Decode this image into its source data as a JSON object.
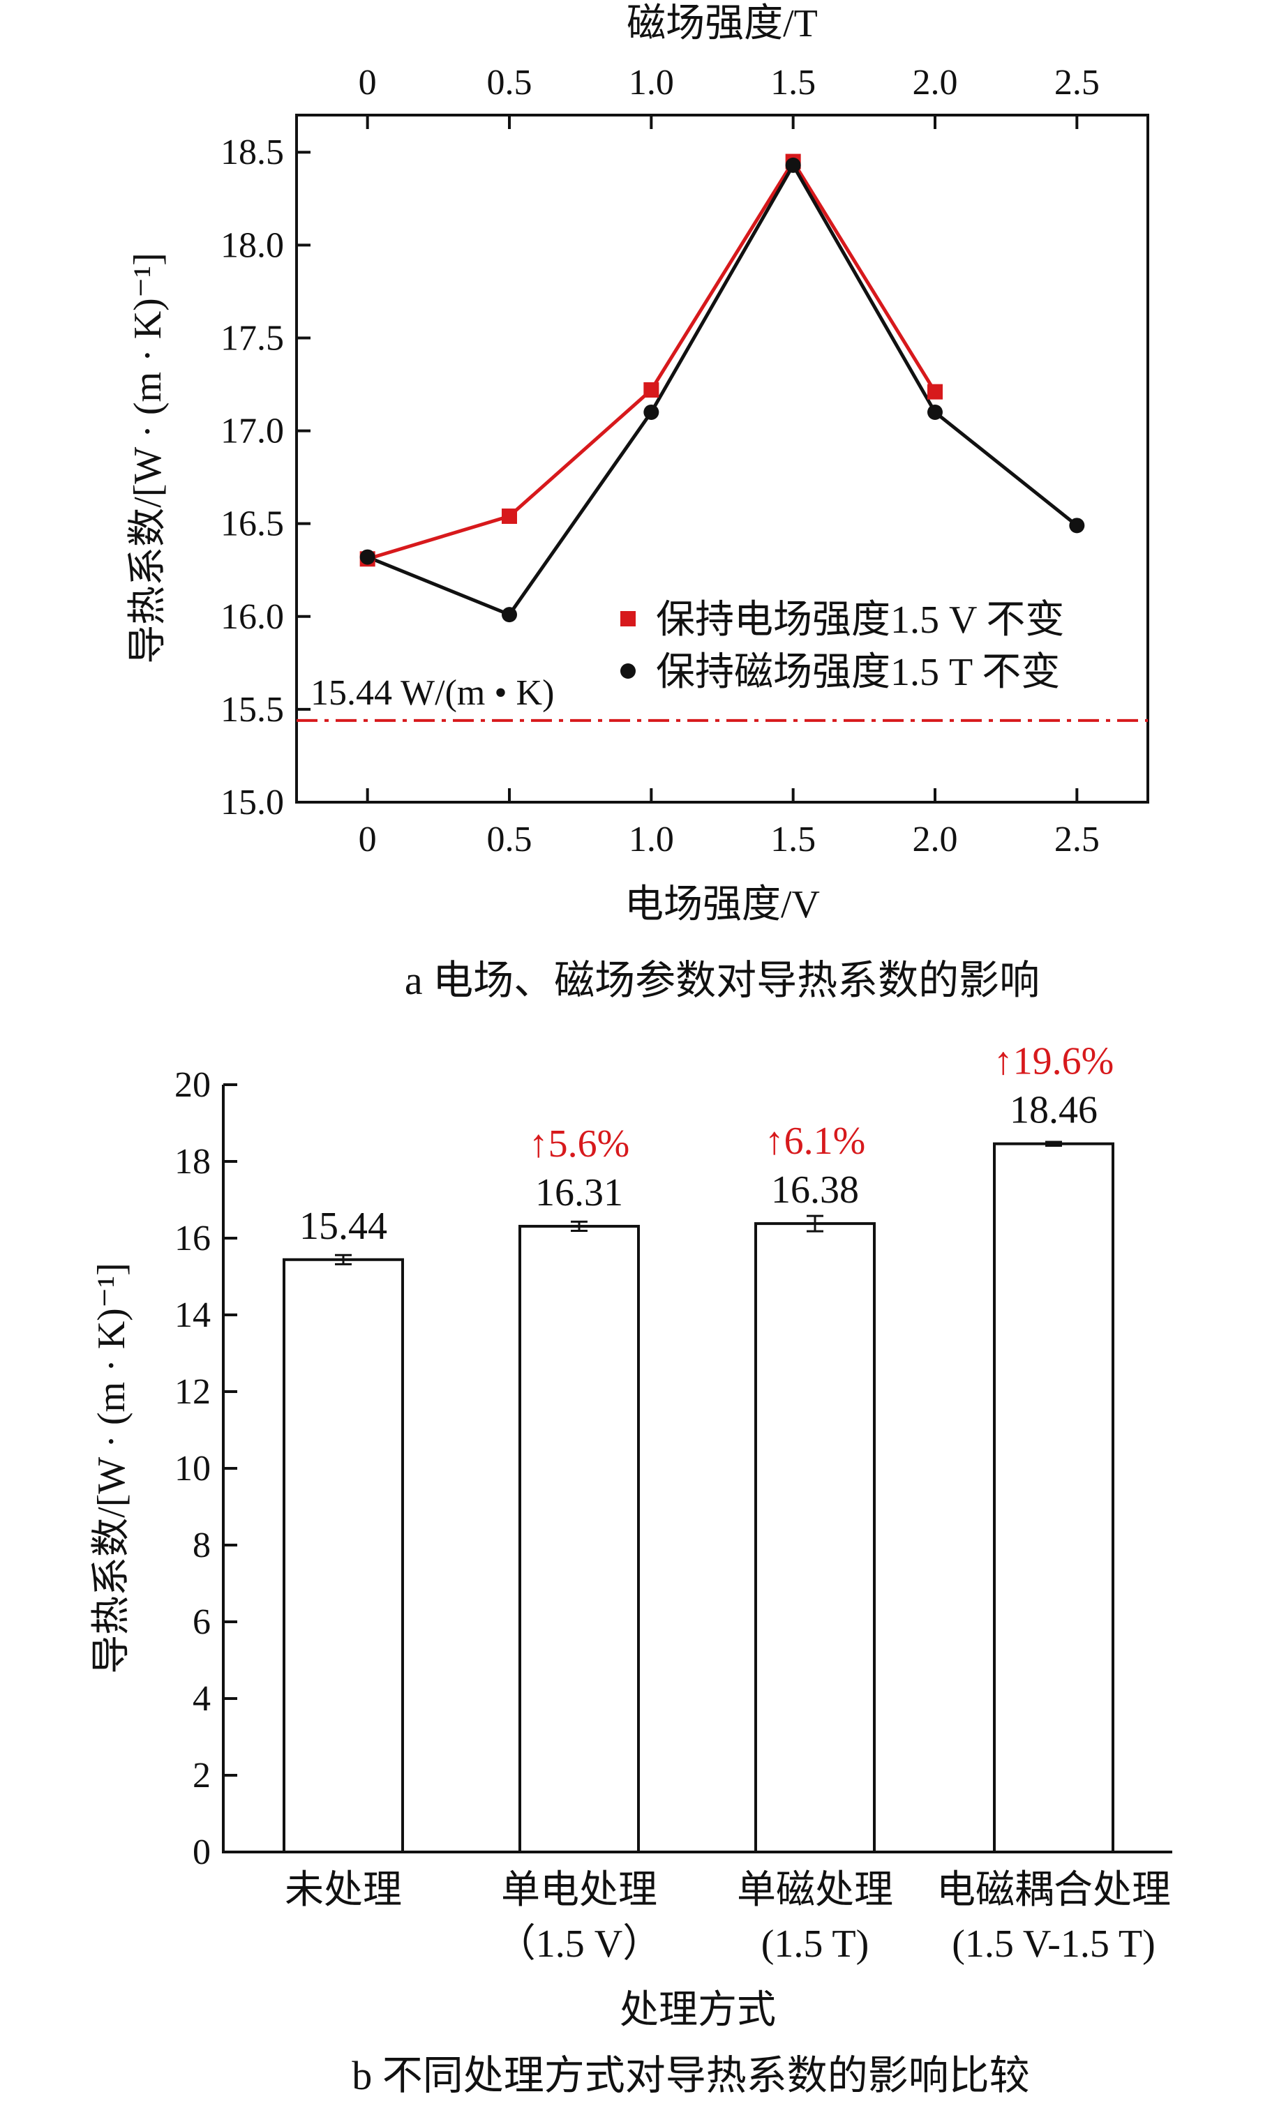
{
  "chart_data": [
    {
      "type": "line",
      "caption": "a  电场、磁场参数对导热系数的影响",
      "xlabel": "电场强度/V",
      "x2label": "磁场强度/T",
      "ylabel": "导热系数/[W · (m · K)⁻¹]",
      "xlim": [
        -0.25,
        2.75
      ],
      "ylim": [
        15.0,
        18.7
      ],
      "xticks": [
        "0",
        "0.5",
        "1.0",
        "1.5",
        "2.0",
        "2.5"
      ],
      "x2ticks": [
        "0",
        "0.5",
        "1.0",
        "1.5",
        "2.0",
        "2.5"
      ],
      "yticks": [
        "15.0",
        "15.5",
        "16.0",
        "16.5",
        "17.0",
        "17.5",
        "18.0",
        "18.5"
      ],
      "series": [
        {
          "name": "保持电场强度1.5 V 不变",
          "color": "#d7191c",
          "marker": "square",
          "x": [
            0,
            0.5,
            1.0,
            1.5,
            2.0
          ],
          "y": [
            16.31,
            16.54,
            17.22,
            18.45,
            17.21
          ]
        },
        {
          "name": "保持磁场强度1.5 T 不变",
          "color": "#111111",
          "marker": "circle",
          "x": [
            0,
            0.5,
            1.0,
            1.5,
            2.0,
            2.5
          ],
          "y": [
            16.32,
            16.01,
            17.1,
            18.43,
            17.1,
            16.49
          ]
        }
      ],
      "reference": {
        "y": 15.44,
        "label": "15.44 W/(m • K)",
        "color": "#d7191c"
      },
      "legend_position": "right"
    },
    {
      "type": "bar",
      "caption": "b  不同处理方式对导热系数的影响比较",
      "xlabel": "处理方式",
      "ylabel": "导热系数/[W · (m · K)⁻¹]",
      "ylim": [
        0,
        20
      ],
      "yticks": [
        "0",
        "2",
        "4",
        "6",
        "8",
        "10",
        "12",
        "14",
        "16",
        "18",
        "20"
      ],
      "categories": [
        {
          "line1": "未处理",
          "line2": ""
        },
        {
          "line1": "单电处理",
          "line2": "（1.5 V）"
        },
        {
          "line1": "单磁处理",
          "line2": "(1.5 T)"
        },
        {
          "line1": "电磁耦合处理",
          "line2": "(1.5 V-1.5 T)"
        }
      ],
      "values": [
        15.44,
        16.31,
        16.38,
        18.46
      ],
      "errors": [
        0.12,
        0.12,
        0.2,
        0.05
      ],
      "value_labels": [
        "15.44",
        "16.31",
        "16.38",
        "18.46"
      ],
      "increase_labels": [
        "",
        "↑5.6%",
        "↑6.1%",
        "↑19.6%"
      ],
      "increase_color": "#d7191c"
    }
  ]
}
